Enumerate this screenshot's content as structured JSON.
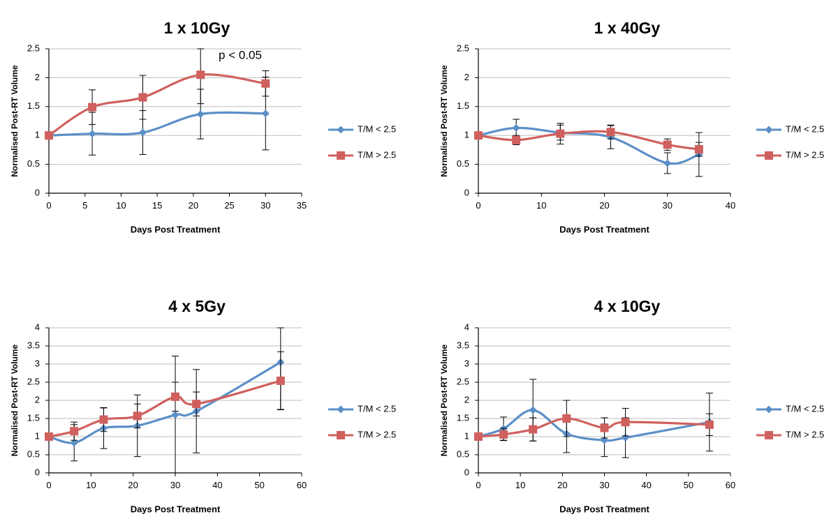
{
  "colors": {
    "series_a": "#5B8FC7",
    "series_b": "#D0605E",
    "grid": "#BEBEBE",
    "axis": "#000000"
  },
  "chart_data": [
    {
      "type": "line",
      "title": "1 x 10Gy",
      "xlabel": "Days Post Treatment",
      "ylabel": "Normalised Post-RT Volume",
      "xlim": [
        0,
        35
      ],
      "xticks": [
        0,
        5,
        10,
        15,
        20,
        25,
        30,
        35
      ],
      "ylim": [
        0,
        2.5
      ],
      "yticks": [
        "0",
        "0.5",
        "1",
        "1.5",
        "2",
        "2.5"
      ],
      "grid": true,
      "legend": "right",
      "annotation": "p < 0.05",
      "series": [
        {
          "name": "T/M < 2.5",
          "marker": "diamond",
          "points": [
            {
              "x": 0,
              "y": 1.0,
              "err": 0
            },
            {
              "x": 6,
              "y": 1.03,
              "err": 0.37
            },
            {
              "x": 13,
              "y": 1.05,
              "err": 0.38
            },
            {
              "x": 21,
              "y": 1.37,
              "err": 0.43
            },
            {
              "x": 30,
              "y": 1.38,
              "err": 0.63
            }
          ]
        },
        {
          "name": "T/M > 2.5",
          "marker": "square",
          "points": [
            {
              "x": 0,
              "y": 1.0,
              "err": 0
            },
            {
              "x": 6,
              "y": 1.49,
              "err": 0.3
            },
            {
              "x": 13,
              "y": 1.66,
              "err": 0.38
            },
            {
              "x": 21,
              "y": 2.05,
              "err": 0.5
            },
            {
              "x": 30,
              "y": 1.9,
              "err": 0.22
            }
          ]
        }
      ]
    },
    {
      "type": "line",
      "title": "1 x 40Gy",
      "xlabel": "Days Post Treatment",
      "ylabel": "Normalised Post-RT Volume",
      "xlim": [
        0,
        40
      ],
      "xticks": [
        0,
        10,
        20,
        30,
        40
      ],
      "ylim": [
        0,
        2.5
      ],
      "yticks": [
        "0",
        "0.5",
        "1",
        "1.5",
        "2",
        "2.5"
      ],
      "grid": true,
      "legend": "right",
      "series": [
        {
          "name": "T/M < 2.5",
          "marker": "diamond",
          "points": [
            {
              "x": 0,
              "y": 1.0,
              "err": 0
            },
            {
              "x": 6,
              "y": 1.13,
              "err": 0.15
            },
            {
              "x": 13,
              "y": 1.05,
              "err": 0.13
            },
            {
              "x": 21,
              "y": 0.97,
              "err": 0.2
            },
            {
              "x": 30,
              "y": 0.52,
              "err": 0.18
            },
            {
              "x": 35,
              "y": 0.67,
              "err": 0.38
            }
          ]
        },
        {
          "name": "T/M > 2.5",
          "marker": "square",
          "points": [
            {
              "x": 0,
              "y": 1.0,
              "err": 0
            },
            {
              "x": 6,
              "y": 0.92,
              "err": 0.08
            },
            {
              "x": 13,
              "y": 1.03,
              "err": 0.18
            },
            {
              "x": 21,
              "y": 1.06,
              "err": 0.12
            },
            {
              "x": 30,
              "y": 0.84,
              "err": 0.1
            },
            {
              "x": 35,
              "y": 0.76,
              "err": 0.12
            }
          ]
        }
      ]
    },
    {
      "type": "line",
      "title": "4 x 5Gy",
      "xlabel": "Days Post Treatment",
      "ylabel": "Normalised Post-RT Volume",
      "xlim": [
        0,
        60
      ],
      "xticks": [
        0,
        10,
        20,
        30,
        40,
        50,
        60
      ],
      "ylim": [
        0,
        4
      ],
      "yticks": [
        "0",
        "0.5",
        "1",
        "1.5",
        "2",
        "2.5",
        "3",
        "3.5",
        "4"
      ],
      "grid": true,
      "legend": "right",
      "series": [
        {
          "name": "T/M < 2.5",
          "marker": "diamond",
          "points": [
            {
              "x": 0,
              "y": 1.0,
              "err": 0
            },
            {
              "x": 6,
              "y": 0.83,
              "err": 0.5
            },
            {
              "x": 13,
              "y": 1.23,
              "err": 0.56
            },
            {
              "x": 21,
              "y": 1.3,
              "err": 0.85
            },
            {
              "x": 30,
              "y": 1.6,
              "err": 1.62
            },
            {
              "x": 35,
              "y": 1.7,
              "err": 1.15
            },
            {
              "x": 55,
              "y": 3.05,
              "err": 1.3
            }
          ]
        },
        {
          "name": "T/M > 2.5",
          "marker": "square",
          "points": [
            {
              "x": 0,
              "y": 1.0,
              "err": 0
            },
            {
              "x": 6,
              "y": 1.15,
              "err": 0.25
            },
            {
              "x": 13,
              "y": 1.47,
              "err": 0.33
            },
            {
              "x": 21,
              "y": 1.57,
              "err": 0.33
            },
            {
              "x": 30,
              "y": 2.1,
              "err": 0.4
            },
            {
              "x": 35,
              "y": 1.9,
              "err": 0.33
            },
            {
              "x": 55,
              "y": 2.54,
              "err": 0.8
            }
          ]
        }
      ]
    },
    {
      "type": "line",
      "title": "4 x 10Gy",
      "xlabel": "Days Post Treatment",
      "ylabel": "Normalised Post-RT Volume",
      "xlim": [
        0,
        60
      ],
      "xticks": [
        0,
        10,
        20,
        30,
        40,
        50,
        60
      ],
      "ylim": [
        0,
        4
      ],
      "yticks": [
        "0",
        "0.5",
        "1",
        "1.5",
        "2",
        "2.5",
        "3",
        "3.5",
        "4"
      ],
      "grid": true,
      "legend": "right",
      "series": [
        {
          "name": "T/M < 2.5",
          "marker": "diamond",
          "points": [
            {
              "x": 0,
              "y": 1.0,
              "err": 0
            },
            {
              "x": 6,
              "y": 1.22,
              "err": 0.32
            },
            {
              "x": 13,
              "y": 1.73,
              "err": 0.85
            },
            {
              "x": 21,
              "y": 1.08,
              "err": 0.52
            },
            {
              "x": 30,
              "y": 0.9,
              "err": 0.45
            },
            {
              "x": 35,
              "y": 0.97,
              "err": 0.55
            },
            {
              "x": 55,
              "y": 1.4,
              "err": 0.8
            }
          ]
        },
        {
          "name": "T/M > 2.5",
          "marker": "square",
          "points": [
            {
              "x": 0,
              "y": 1.0,
              "err": 0
            },
            {
              "x": 6,
              "y": 1.06,
              "err": 0.17
            },
            {
              "x": 13,
              "y": 1.2,
              "err": 0.32
            },
            {
              "x": 21,
              "y": 1.5,
              "err": 0.5
            },
            {
              "x": 30,
              "y": 1.24,
              "err": 0.28
            },
            {
              "x": 35,
              "y": 1.4,
              "err": 0.38
            },
            {
              "x": 55,
              "y": 1.33,
              "err": 0.3
            }
          ]
        }
      ]
    }
  ]
}
